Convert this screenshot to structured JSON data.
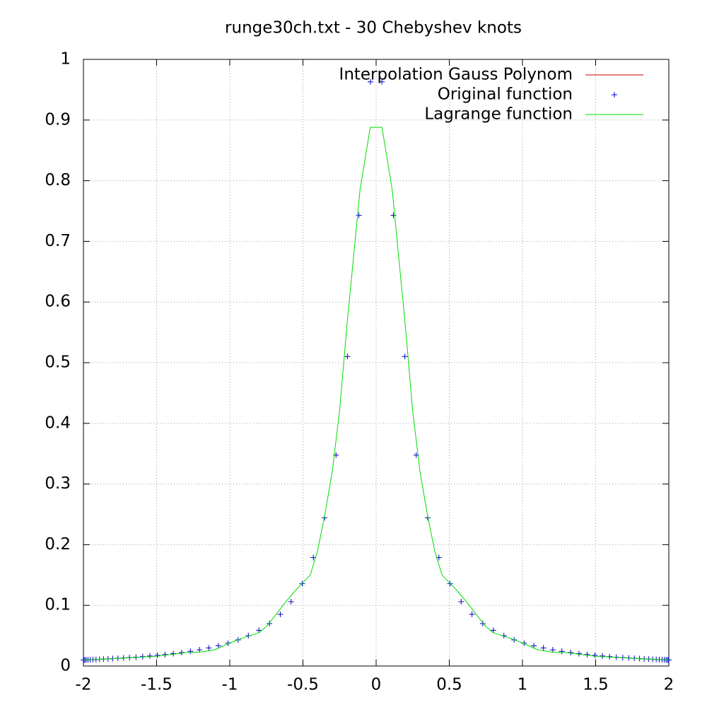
{
  "chart_data": {
    "type": "line",
    "title": "runge30ch.txt - 30 Chebyshev knots",
    "xlim": [
      -2,
      2
    ],
    "ylim": [
      0,
      1
    ],
    "xticks": [
      -2,
      -1.5,
      -1,
      -0.5,
      0,
      0.5,
      1,
      1.5,
      2
    ],
    "yticks": [
      0,
      0.1,
      0.2,
      0.3,
      0.4,
      0.5,
      0.6,
      0.7,
      0.8,
      0.9,
      1
    ],
    "grid": true,
    "legend": "top-right",
    "series": [
      {
        "name": "Interpolation Gauss Polynom",
        "color": "#cc0000",
        "style": "line"
      },
      {
        "name": "Original function",
        "color": "#0000cc",
        "style": "points",
        "x": [
          -2.0,
          -1.997,
          -1.99,
          -1.981,
          -1.969,
          -1.954,
          -1.935,
          -1.914,
          -1.89,
          -1.863,
          -1.832,
          -1.8,
          -1.764,
          -1.726,
          -1.685,
          -1.641,
          -1.595,
          -1.546,
          -1.495,
          -1.442,
          -1.386,
          -1.329,
          -1.269,
          -1.207,
          -1.143,
          -1.078,
          -1.011,
          -0.943,
          -0.873,
          -0.801,
          -0.729,
          -0.655,
          -0.581,
          -0.505,
          -0.429,
          -0.352,
          -0.274,
          -0.196,
          -0.118,
          -0.039,
          0.039,
          0.118,
          0.196,
          0.274,
          0.352,
          0.429,
          0.505,
          0.581,
          0.655,
          0.729,
          0.801,
          0.873,
          0.943,
          1.011,
          1.078,
          1.143,
          1.207,
          1.269,
          1.329,
          1.386,
          1.442,
          1.495,
          1.546,
          1.595,
          1.641,
          1.685,
          1.726,
          1.764,
          1.8,
          1.832,
          1.863,
          1.89,
          1.914,
          1.935,
          1.954,
          1.969,
          1.981,
          1.99,
          1.997,
          2.0
        ],
        "values": [
          0.0099,
          0.0099,
          0.01,
          0.0101,
          0.0103,
          0.0104,
          0.0106,
          0.0108,
          0.0111,
          0.0114,
          0.0118,
          0.0122,
          0.0127,
          0.0132,
          0.0139,
          0.0146,
          0.0155,
          0.0164,
          0.0176,
          0.0189,
          0.0204,
          0.0221,
          0.0242,
          0.0267,
          0.0297,
          0.0333,
          0.0376,
          0.0431,
          0.0499,
          0.0588,
          0.07,
          0.0852,
          0.1061,
          0.1356,
          0.1788,
          0.2444,
          0.3476,
          0.5102,
          0.7428,
          0.963,
          0.963,
          0.7428,
          0.5102,
          0.3476,
          0.2444,
          0.1788,
          0.1356,
          0.1061,
          0.0852,
          0.07,
          0.0588,
          0.0499,
          0.0431,
          0.0376,
          0.0333,
          0.0297,
          0.0267,
          0.0242,
          0.0221,
          0.0204,
          0.0189,
          0.0176,
          0.0164,
          0.0155,
          0.0146,
          0.0139,
          0.0132,
          0.0127,
          0.0122,
          0.0118,
          0.0114,
          0.0111,
          0.0108,
          0.0106,
          0.0104,
          0.0103,
          0.0101,
          0.01,
          0.0099,
          0.0099
        ]
      },
      {
        "name": "Lagrange function",
        "color": "#00dd00",
        "style": "line",
        "x": [
          -2,
          -1.8,
          -1.5,
          -1.3,
          -1.2,
          -1.1,
          -1,
          -0.9,
          -0.8,
          -0.75,
          -0.7,
          -0.62,
          -0.55,
          -0.45,
          -0.4,
          -0.35,
          -0.3,
          -0.25,
          -0.2,
          -0.11,
          -0.04,
          0.04,
          0.11,
          0.2,
          0.25,
          0.3,
          0.35,
          0.4,
          0.45,
          0.55,
          0.62,
          0.7,
          0.75,
          0.8,
          0.9,
          1,
          1.1,
          1.2,
          1.3,
          1.5,
          1.8,
          2
        ],
        "values": [
          0.01,
          0.012,
          0.016,
          0.022,
          0.023,
          0.027,
          0.038,
          0.047,
          0.055,
          0.065,
          0.08,
          0.105,
          0.125,
          0.15,
          0.19,
          0.25,
          0.32,
          0.42,
          0.56,
          0.785,
          0.888,
          0.888,
          0.785,
          0.56,
          0.42,
          0.32,
          0.25,
          0.19,
          0.15,
          0.125,
          0.105,
          0.08,
          0.065,
          0.055,
          0.047,
          0.038,
          0.027,
          0.023,
          0.022,
          0.016,
          0.012,
          0.01
        ]
      }
    ]
  }
}
